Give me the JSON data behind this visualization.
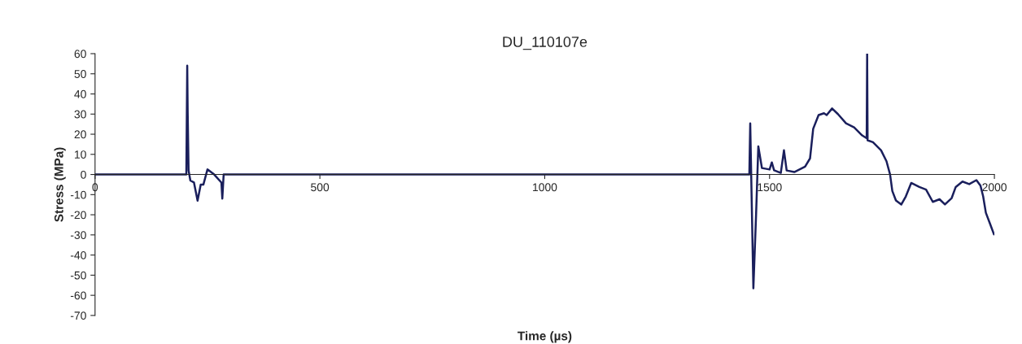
{
  "chart_data": {
    "type": "line",
    "title": "DU_110107e",
    "xlabel": "Time (µs)",
    "ylabel": "Stress (MPa)",
    "xlim": [
      0,
      2000
    ],
    "xticks": [
      0,
      500,
      1000,
      1500,
      2000
    ],
    "ylim": [
      -70,
      60
    ],
    "yticks": [
      -70,
      -60,
      -50,
      -40,
      -30,
      -20,
      -10,
      0,
      10,
      20,
      30,
      40,
      50,
      60
    ],
    "grid": false,
    "legend": false,
    "marker": "none",
    "line_style": "solid",
    "series": [
      {
        "color": "#1a1f5c",
        "x": [
          0,
          100,
          203,
          205,
          206,
          208,
          212,
          220,
          228,
          235,
          241,
          250,
          265,
          281,
          283,
          286,
          400,
          600,
          800,
          1000,
          1200,
          1400,
          1455,
          1457,
          1460,
          1464,
          1470,
          1475,
          1483,
          1500,
          1505,
          1510,
          1525,
          1532,
          1538,
          1555,
          1579,
          1590,
          1597,
          1609,
          1621,
          1627,
          1639,
          1652,
          1670,
          1688,
          1706,
          1716,
          1717,
          1718,
          1730,
          1748,
          1760,
          1768,
          1773,
          1781,
          1793,
          1803,
          1815,
          1833,
          1848,
          1863,
          1878,
          1890,
          1905,
          1914,
          1929,
          1944,
          1960,
          1969,
          1975,
          1981,
          1990,
          1999
        ],
        "values": [
          0,
          0,
          0,
          54,
          31,
          2,
          -3,
          -4,
          -13,
          -5,
          -5,
          2.5,
          0,
          -4,
          -12,
          0,
          0,
          0,
          0,
          0,
          0,
          0,
          0,
          25.4,
          -10,
          -56.5,
          -20,
          14,
          3.2,
          2.5,
          6,
          2.1,
          0.8,
          12,
          2,
          1.2,
          3.9,
          8,
          22.7,
          29.5,
          30.4,
          29.5,
          32.8,
          30,
          25.4,
          23.4,
          19.4,
          18,
          60,
          17,
          16,
          12,
          6.6,
          0,
          -8.2,
          -12.9,
          -14.9,
          -10.9,
          -4.2,
          -6.2,
          -7.5,
          -13.6,
          -12.3,
          -14.9,
          -11.7,
          -6.2,
          -3.5,
          -4.8,
          -2.8,
          -5.5,
          -10.9,
          -19,
          -24.3,
          -29.7
        ]
      }
    ]
  }
}
